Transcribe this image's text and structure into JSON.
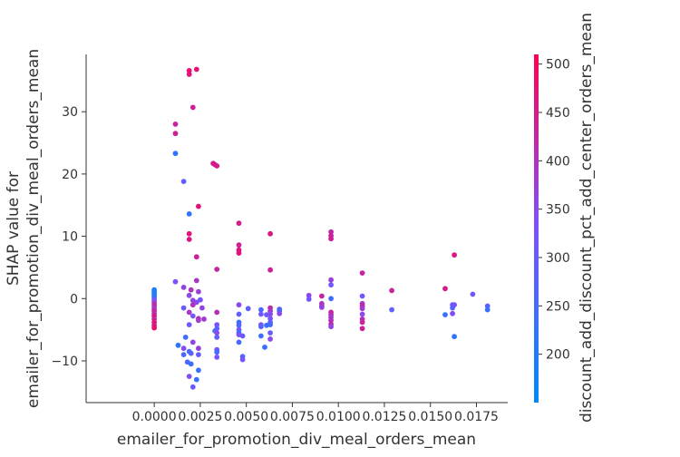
{
  "chart_data": {
    "type": "scatter",
    "title": "",
    "xlabel": "emailer_for_promotion_div_meal_orders_mean",
    "ylabel_lines": [
      "SHAP value for",
      "emailer_for_promotion_div_meal_orders_mean"
    ],
    "colorbar_label": "discount_add_discount_pct_add_center_orders_mean",
    "xlim": [
      -0.0037,
      0.0192
    ],
    "ylim": [
      -16.7,
      39.2
    ],
    "x_ticks": [
      0.0,
      0.0025,
      0.005,
      0.0075,
      0.01,
      0.0125,
      0.015,
      0.0175
    ],
    "x_tick_labels": [
      "0.0000",
      "0.0025",
      "0.0050",
      "0.0075",
      "0.0100",
      "0.0125",
      "0.0150",
      "0.0175"
    ],
    "y_ticks": [
      -10,
      0,
      10,
      20,
      30
    ],
    "y_tick_labels": [
      "−10",
      "0",
      "10",
      "20",
      "30"
    ],
    "color_range": [
      150,
      510
    ],
    "color_ticks": [
      200,
      250,
      300,
      350,
      400,
      450,
      500
    ],
    "color_tick_labels": [
      "200",
      "250",
      "300",
      "350",
      "400",
      "450",
      "500"
    ],
    "colors": {
      "low": "#008afb",
      "mid": "#7c52ff",
      "high": "#ff0052",
      "axis": "#333333"
    },
    "grid": false,
    "points": [
      {
        "x": 0.0,
        "y": 1.4,
        "c": 185
      },
      {
        "x": 0.0,
        "y": 1.1,
        "c": 190
      },
      {
        "x": 0.0,
        "y": 0.8,
        "c": 195
      },
      {
        "x": 0.0,
        "y": 0.5,
        "c": 200
      },
      {
        "x": 0.0,
        "y": 0.2,
        "c": 210
      },
      {
        "x": 0.0,
        "y": -0.1,
        "c": 300
      },
      {
        "x": 0.0,
        "y": -0.4,
        "c": 330
      },
      {
        "x": 0.0,
        "y": -0.8,
        "c": 400
      },
      {
        "x": 0.0,
        "y": -1.2,
        "c": 420
      },
      {
        "x": 0.0,
        "y": -1.6,
        "c": 380
      },
      {
        "x": 0.0,
        "y": -2.0,
        "c": 440
      },
      {
        "x": 0.0,
        "y": -2.4,
        "c": 410
      },
      {
        "x": 0.0,
        "y": -2.8,
        "c": 460
      },
      {
        "x": 0.0,
        "y": -3.3,
        "c": 430
      },
      {
        "x": 0.0,
        "y": -3.8,
        "c": 470
      },
      {
        "x": 0.0,
        "y": -4.3,
        "c": 450
      },
      {
        "x": 0.0,
        "y": -4.7,
        "c": 480
      },
      {
        "x": 0.00115,
        "y": 28.0,
        "c": 430
      },
      {
        "x": 0.00115,
        "y": 26.5,
        "c": 440
      },
      {
        "x": 0.00115,
        "y": 23.3,
        "c": 220
      },
      {
        "x": 0.00115,
        "y": 2.7,
        "c": 330
      },
      {
        "x": 0.0013,
        "y": -7.5,
        "c": 215
      },
      {
        "x": 0.0016,
        "y": 18.8,
        "c": 290
      },
      {
        "x": 0.0016,
        "y": 1.8,
        "c": 360
      },
      {
        "x": 0.0016,
        "y": -1.5,
        "c": 300
      },
      {
        "x": 0.0016,
        "y": -8.0,
        "c": 340
      },
      {
        "x": 0.0016,
        "y": -9.0,
        "c": 260
      },
      {
        "x": 0.0017,
        "y": -6.2,
        "c": 240
      },
      {
        "x": 0.0018,
        "y": -10.2,
        "c": 270
      },
      {
        "x": 0.0019,
        "y": -8.5,
        "c": 250
      },
      {
        "x": 0.0019,
        "y": 36.6,
        "c": 480
      },
      {
        "x": 0.0019,
        "y": 36.0,
        "c": 470
      },
      {
        "x": 0.0019,
        "y": 13.6,
        "c": 215
      },
      {
        "x": 0.0019,
        "y": 10.4,
        "c": 470
      },
      {
        "x": 0.0019,
        "y": 9.5,
        "c": 460
      },
      {
        "x": 0.0019,
        "y": 0.5,
        "c": 350
      },
      {
        "x": 0.0019,
        "y": -2.2,
        "c": 390
      },
      {
        "x": 0.0019,
        "y": -4.2,
        "c": 310
      },
      {
        "x": 0.0019,
        "y": -12.5,
        "c": 340
      },
      {
        "x": 0.002,
        "y": 1.4,
        "c": 400
      },
      {
        "x": 0.002,
        "y": -8.8,
        "c": 280
      },
      {
        "x": 0.002,
        "y": -10.5,
        "c": 230
      },
      {
        "x": 0.0021,
        "y": 30.7,
        "c": 440
      },
      {
        "x": 0.0021,
        "y": -0.3,
        "c": 360
      },
      {
        "x": 0.0021,
        "y": -1.0,
        "c": 400
      },
      {
        "x": 0.0021,
        "y": -2.8,
        "c": 330
      },
      {
        "x": 0.0021,
        "y": -7.0,
        "c": 360
      },
      {
        "x": 0.0021,
        "y": -14.2,
        "c": 300
      },
      {
        "x": 0.0023,
        "y": 36.8,
        "c": 470
      },
      {
        "x": 0.0023,
        "y": 6.7,
        "c": 440
      },
      {
        "x": 0.0023,
        "y": 2.9,
        "c": 390
      },
      {
        "x": 0.0023,
        "y": -0.6,
        "c": 350
      },
      {
        "x": 0.0023,
        "y": -13.0,
        "c": 230
      },
      {
        "x": 0.0024,
        "y": 14.8,
        "c": 470
      },
      {
        "x": 0.0024,
        "y": 1.1,
        "c": 370
      },
      {
        "x": 0.0024,
        "y": -3.2,
        "c": 410
      },
      {
        "x": 0.0024,
        "y": -3.5,
        "c": 380
      },
      {
        "x": 0.0024,
        "y": -8.0,
        "c": 370
      },
      {
        "x": 0.0024,
        "y": -9.0,
        "c": 300
      },
      {
        "x": 0.0024,
        "y": -11.5,
        "c": 230
      },
      {
        "x": 0.0025,
        "y": -0.2,
        "c": 320
      },
      {
        "x": 0.0026,
        "y": -1.5,
        "c": 360
      },
      {
        "x": 0.0027,
        "y": -3.3,
        "c": 380
      },
      {
        "x": 0.0032,
        "y": 21.7,
        "c": 440
      },
      {
        "x": 0.0033,
        "y": 21.5,
        "c": 460
      },
      {
        "x": 0.0034,
        "y": 21.3,
        "c": 450
      },
      {
        "x": 0.0033,
        "y": -5.2,
        "c": 230
      },
      {
        "x": 0.0034,
        "y": 4.7,
        "c": 430
      },
      {
        "x": 0.0034,
        "y": -2.2,
        "c": 410
      },
      {
        "x": 0.0034,
        "y": -4.2,
        "c": 330
      },
      {
        "x": 0.0034,
        "y": -4.8,
        "c": 280
      },
      {
        "x": 0.0034,
        "y": -5.5,
        "c": 350
      },
      {
        "x": 0.0034,
        "y": -6.2,
        "c": 290
      },
      {
        "x": 0.0034,
        "y": -8.2,
        "c": 320
      },
      {
        "x": 0.0034,
        "y": -8.6,
        "c": 250
      },
      {
        "x": 0.0034,
        "y": -9.4,
        "c": 330
      },
      {
        "x": 0.0046,
        "y": 12.1,
        "c": 450
      },
      {
        "x": 0.0046,
        "y": 8.6,
        "c": 440
      },
      {
        "x": 0.0046,
        "y": 7.8,
        "c": 460
      },
      {
        "x": 0.0046,
        "y": 7.3,
        "c": 470
      },
      {
        "x": 0.0046,
        "y": -1.0,
        "c": 350
      },
      {
        "x": 0.0046,
        "y": -2.5,
        "c": 290
      },
      {
        "x": 0.0046,
        "y": -3.8,
        "c": 240
      },
      {
        "x": 0.0046,
        "y": -4.3,
        "c": 270
      },
      {
        "x": 0.0046,
        "y": -5.0,
        "c": 310
      },
      {
        "x": 0.0046,
        "y": -5.5,
        "c": 220
      },
      {
        "x": 0.0046,
        "y": -5.8,
        "c": 330
      },
      {
        "x": 0.0046,
        "y": -7.0,
        "c": 250
      },
      {
        "x": 0.0048,
        "y": -6.0,
        "c": 300
      },
      {
        "x": 0.0048,
        "y": -9.3,
        "c": 270
      },
      {
        "x": 0.0048,
        "y": -9.8,
        "c": 320
      },
      {
        "x": 0.0051,
        "y": -1.6,
        "c": 290
      },
      {
        "x": 0.0058,
        "y": -1.8,
        "c": 260
      },
      {
        "x": 0.0058,
        "y": -2.5,
        "c": 310
      },
      {
        "x": 0.0058,
        "y": -4.2,
        "c": 330
      },
      {
        "x": 0.0058,
        "y": -4.5,
        "c": 280
      },
      {
        "x": 0.0058,
        "y": -6.0,
        "c": 240
      },
      {
        "x": 0.006,
        "y": -7.8,
        "c": 230
      },
      {
        "x": 0.0061,
        "y": -2.6,
        "c": 300
      },
      {
        "x": 0.0061,
        "y": -4.3,
        "c": 230
      },
      {
        "x": 0.0063,
        "y": 10.4,
        "c": 460
      },
      {
        "x": 0.0063,
        "y": 4.6,
        "c": 440
      },
      {
        "x": 0.0063,
        "y": -1.5,
        "c": 420
      },
      {
        "x": 0.0063,
        "y": -2.0,
        "c": 380
      },
      {
        "x": 0.0063,
        "y": -2.5,
        "c": 350
      },
      {
        "x": 0.0063,
        "y": -3.2,
        "c": 320
      },
      {
        "x": 0.0063,
        "y": -3.8,
        "c": 280
      },
      {
        "x": 0.0063,
        "y": -4.2,
        "c": 250
      },
      {
        "x": 0.0063,
        "y": -5.5,
        "c": 300
      },
      {
        "x": 0.0063,
        "y": -6.5,
        "c": 350
      },
      {
        "x": 0.0068,
        "y": -1.7,
        "c": 280
      },
      {
        "x": 0.0068,
        "y": -2.0,
        "c": 230
      },
      {
        "x": 0.0068,
        "y": -2.4,
        "c": 350
      },
      {
        "x": 0.0084,
        "y": 0.5,
        "c": 350
      },
      {
        "x": 0.0084,
        "y": -0.1,
        "c": 320
      },
      {
        "x": 0.0091,
        "y": 0.4,
        "c": 430
      },
      {
        "x": 0.0091,
        "y": -0.8,
        "c": 390
      },
      {
        "x": 0.0091,
        "y": -1.2,
        "c": 400
      },
      {
        "x": 0.0091,
        "y": -1.4,
        "c": 360
      },
      {
        "x": 0.0096,
        "y": 10.7,
        "c": 420
      },
      {
        "x": 0.0096,
        "y": 10.1,
        "c": 430
      },
      {
        "x": 0.0096,
        "y": 9.6,
        "c": 440
      },
      {
        "x": 0.0096,
        "y": 3.0,
        "c": 370
      },
      {
        "x": 0.0096,
        "y": 2.2,
        "c": 320
      },
      {
        "x": 0.0096,
        "y": 0.0,
        "c": 250
      },
      {
        "x": 0.0096,
        "y": -2.2,
        "c": 430
      },
      {
        "x": 0.0096,
        "y": -2.6,
        "c": 410
      },
      {
        "x": 0.0096,
        "y": -3.0,
        "c": 380
      },
      {
        "x": 0.0096,
        "y": -3.5,
        "c": 400
      },
      {
        "x": 0.0096,
        "y": -4.1,
        "c": 420
      },
      {
        "x": 0.0096,
        "y": -4.5,
        "c": 360
      },
      {
        "x": 0.0113,
        "y": 4.1,
        "c": 430
      },
      {
        "x": 0.0113,
        "y": 0.4,
        "c": 320
      },
      {
        "x": 0.0113,
        "y": -0.8,
        "c": 390
      },
      {
        "x": 0.0113,
        "y": -1.2,
        "c": 420
      },
      {
        "x": 0.0113,
        "y": -1.6,
        "c": 380
      },
      {
        "x": 0.0113,
        "y": -2.5,
        "c": 350
      },
      {
        "x": 0.0113,
        "y": -3.3,
        "c": 410
      },
      {
        "x": 0.0113,
        "y": -3.8,
        "c": 430
      },
      {
        "x": 0.0113,
        "y": -4.8,
        "c": 440
      },
      {
        "x": 0.0129,
        "y": 1.3,
        "c": 430
      },
      {
        "x": 0.0129,
        "y": -1.8,
        "c": 290
      },
      {
        "x": 0.0158,
        "y": 1.6,
        "c": 450
      },
      {
        "x": 0.0158,
        "y": -2.6,
        "c": 230
      },
      {
        "x": 0.0162,
        "y": -1.0,
        "c": 290
      },
      {
        "x": 0.0162,
        "y": -1.5,
        "c": 270
      },
      {
        "x": 0.0162,
        "y": -2.4,
        "c": 340
      },
      {
        "x": 0.0163,
        "y": 7.0,
        "c": 460
      },
      {
        "x": 0.0163,
        "y": -1.0,
        "c": 320
      },
      {
        "x": 0.0163,
        "y": -6.1,
        "c": 220
      },
      {
        "x": 0.0173,
        "y": 0.7,
        "c": 320
      },
      {
        "x": 0.0181,
        "y": -1.2,
        "c": 280
      },
      {
        "x": 0.0181,
        "y": -1.8,
        "c": 230
      }
    ]
  }
}
